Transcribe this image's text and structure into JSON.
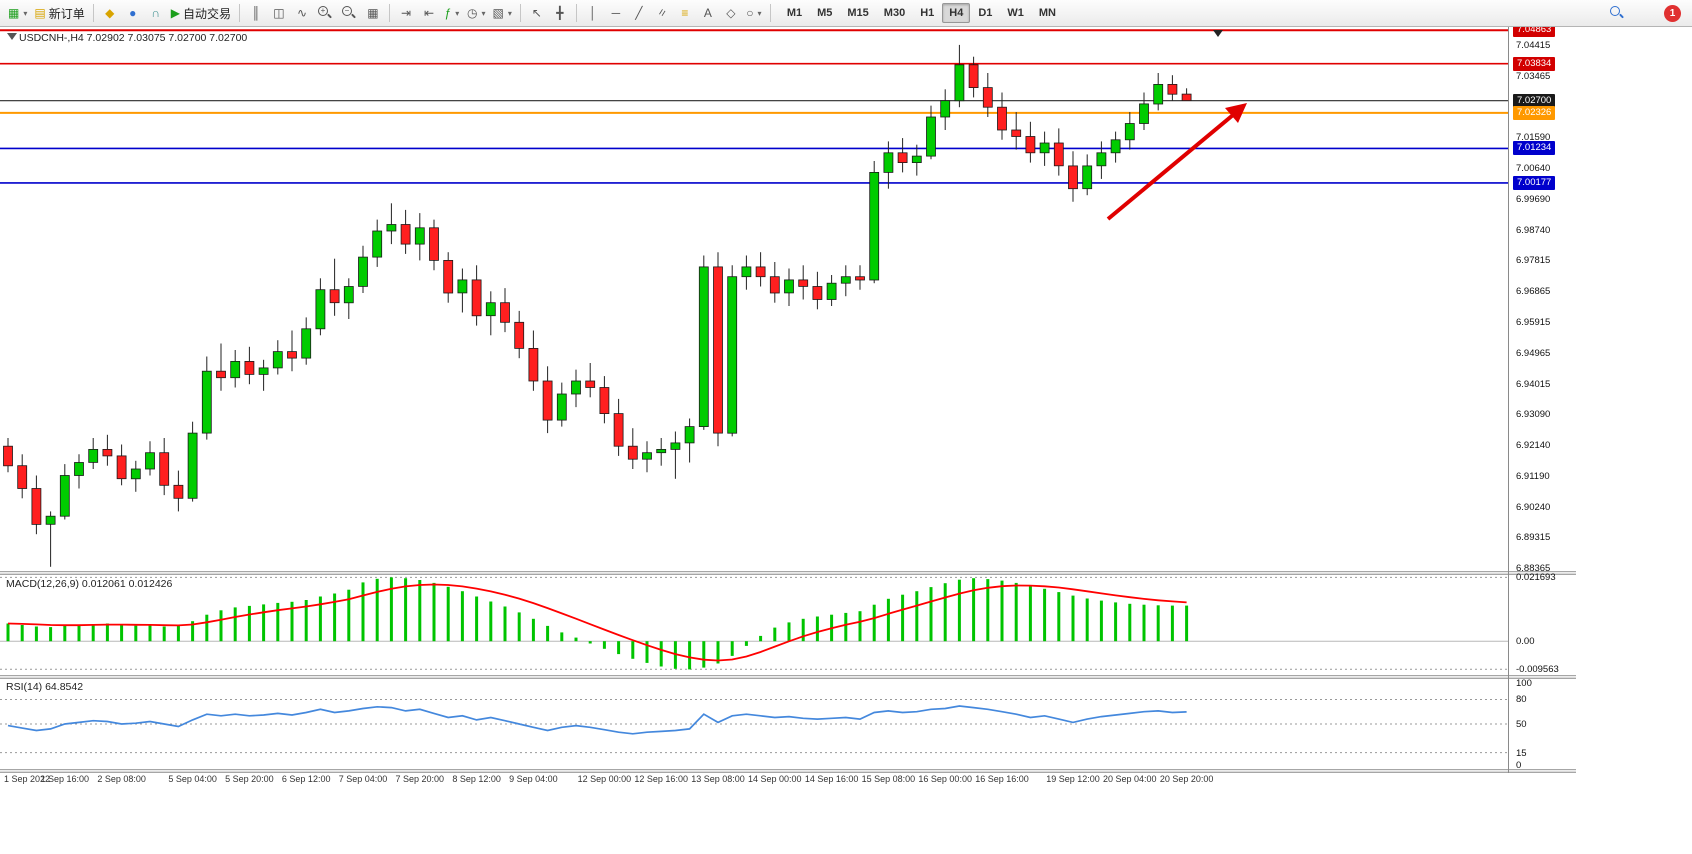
{
  "toolbar": {
    "new_order_label": "新订单",
    "auto_trading_label": "自动交易",
    "timeframes": [
      "M1",
      "M5",
      "M15",
      "M30",
      "H1",
      "H4",
      "D1",
      "W1",
      "MN"
    ],
    "active_timeframe": "H4",
    "notification_count": "1"
  },
  "icons": {
    "caret": "▾",
    "new_chart": "▦",
    "new_order": "▤",
    "coin": "◆",
    "profile": "●",
    "headset": "∩",
    "play": "▶",
    "bar_chart": "║",
    "candle_chart": "◫",
    "line_chart": "∿",
    "plus": "+",
    "minus": "−",
    "tile": "▦",
    "autoscroll": "⇥",
    "shift": "⇤",
    "indicators": "ƒ",
    "period": "◷",
    "template": "▧",
    "cursor": "↖",
    "crosshair": "╋",
    "vline": "│",
    "hline": "─",
    "tline": "╱",
    "channel": "=",
    "fibo": "≡",
    "text_tool": "A",
    "label_tool": "◇",
    "shapes": "○"
  },
  "chart": {
    "title": "USDCNH-,H4 7.02902 7.03075 7.02700 7.02700",
    "symbol": "USDCNH-",
    "period": "H4",
    "ohlc": {
      "open": "7.02902",
      "high": "7.03075",
      "low": "7.02700",
      "close": "7.02700"
    },
    "hlines": [
      {
        "price": 7.04863,
        "color": "#e00000",
        "width": 2
      },
      {
        "price": 7.03834,
        "color": "#e00000",
        "width": 1.6
      },
      {
        "price": 7.027,
        "color": "#2a2a2a",
        "width": 1.2
      },
      {
        "price": 7.02326,
        "color": "#ff9900",
        "width": 2
      },
      {
        "price": 7.01234,
        "color": "#0000cc",
        "width": 1.6
      },
      {
        "price": 7.00177,
        "color": "#0000cc",
        "width": 1.6
      }
    ],
    "price_axis_tags": [
      {
        "label": "7.04863",
        "price": 7.04863,
        "color": "#d20000"
      },
      {
        "label": "7.03834",
        "price": 7.03834,
        "color": "#d20000"
      },
      {
        "label": "7.02700",
        "price": 7.027,
        "color": "#1a1a1a"
      },
      {
        "label": "7.02326",
        "price": 7.02326,
        "color": "#ff9900"
      },
      {
        "label": "7.01234",
        "price": 7.01234,
        "color": "#0000cc"
      },
      {
        "label": "7.00177",
        "price": 7.00177,
        "color": "#0000cc"
      }
    ],
    "price_axis_plain": [
      {
        "label": "7.04415",
        "price": 7.04415
      },
      {
        "label": "7.03465",
        "price": 7.03465
      },
      {
        "label": "7.01590",
        "price": 7.0159
      },
      {
        "label": "7.00640",
        "price": 7.0064
      },
      {
        "label": "6.99690",
        "price": 6.9969
      },
      {
        "label": "6.98740",
        "price": 6.9874
      },
      {
        "label": "6.97815",
        "price": 6.97815
      },
      {
        "label": "6.96865",
        "price": 6.96865
      },
      {
        "label": "6.95915",
        "price": 6.95915
      },
      {
        "label": "6.94965",
        "price": 6.94965
      },
      {
        "label": "6.94015",
        "price": 6.94015
      },
      {
        "label": "6.93090",
        "price": 6.9309
      },
      {
        "label": "6.92140",
        "price": 6.9214
      },
      {
        "label": "6.91190",
        "price": 6.9119
      },
      {
        "label": "6.90240",
        "price": 6.9024
      },
      {
        "label": "6.89315",
        "price": 6.89315
      },
      {
        "label": "6.88365",
        "price": 6.88365
      }
    ],
    "x_labels": [
      {
        "label": "1 Sep 2022",
        "candle": 0
      },
      {
        "label": "1 Sep 16:00",
        "candle": 4
      },
      {
        "label": "2 Sep 08:00",
        "candle": 8
      },
      {
        "label": "5 Sep 04:00",
        "candle": 13
      },
      {
        "label": "5 Sep 20:00",
        "candle": 17
      },
      {
        "label": "6 Sep 12:00",
        "candle": 21
      },
      {
        "label": "7 Sep 04:00",
        "candle": 25
      },
      {
        "label": "7 Sep 20:00",
        "candle": 29
      },
      {
        "label": "8 Sep 12:00",
        "candle": 33
      },
      {
        "label": "9 Sep 04:00",
        "candle": 37
      },
      {
        "label": "12 Sep 00:00",
        "candle": 42
      },
      {
        "label": "12 Sep 16:00",
        "candle": 46
      },
      {
        "label": "13 Sep 08:00",
        "candle": 50
      },
      {
        "label": "14 Sep 00:00",
        "candle": 54
      },
      {
        "label": "14 Sep 16:00",
        "candle": 58
      },
      {
        "label": "15 Sep 08:00",
        "candle": 62
      },
      {
        "label": "16 Sep 00:00",
        "candle": 66
      },
      {
        "label": "16 Sep 16:00",
        "candle": 70
      },
      {
        "label": "19 Sep 12:00",
        "candle": 75
      },
      {
        "label": "20 Sep 04:00",
        "candle": 79
      },
      {
        "label": "20 Sep 20:00",
        "candle": 83
      }
    ]
  },
  "macd_panel": {
    "label": "MACD(12,26,9) 0.012061 0.012426",
    "axis": [
      {
        "label": "0.021693",
        "value": 0.021693
      },
      {
        "label": "0.00",
        "value": 0
      },
      {
        "label": "-0.009563",
        "value": -0.009563
      }
    ]
  },
  "rsi_panel": {
    "label": "RSI(14) 64.8542",
    "axis": [
      {
        "label": "100",
        "value": 100
      },
      {
        "label": "80",
        "value": 80
      },
      {
        "label": "50",
        "value": 50
      },
      {
        "label": "15",
        "value": 15
      },
      {
        "label": "0",
        "value": 0
      }
    ],
    "levels": [
      80,
      50,
      15
    ]
  },
  "chart_data": {
    "type": "candlestick",
    "symbol": "USDCNH-",
    "timeframe": "H4",
    "price_range": [
      7.0496,
      6.8827
    ],
    "macd_range": [
      0.0225,
      -0.0115
    ],
    "rsi_range": [
      105,
      -5
    ],
    "candles": [
      [
        6.921,
        6.9235,
        6.913,
        6.915
      ],
      [
        6.915,
        6.9185,
        6.905,
        6.908
      ],
      [
        6.908,
        6.912,
        6.894,
        6.897
      ],
      [
        6.897,
        6.901,
        6.884,
        6.8995
      ],
      [
        6.8995,
        6.9155,
        6.8985,
        6.912
      ],
      [
        6.912,
        6.9185,
        6.908,
        6.916
      ],
      [
        6.916,
        6.9235,
        6.914,
        6.92
      ],
      [
        6.92,
        6.9245,
        6.915,
        6.918
      ],
      [
        6.918,
        6.9215,
        6.909,
        6.911
      ],
      [
        6.911,
        6.9165,
        6.907,
        6.914
      ],
      [
        6.914,
        6.9225,
        6.912,
        6.919
      ],
      [
        6.919,
        6.9235,
        6.906,
        6.909
      ],
      [
        6.909,
        6.9135,
        6.901,
        6.905
      ],
      [
        6.905,
        6.9285,
        6.904,
        6.925
      ],
      [
        6.925,
        6.9485,
        6.923,
        6.944
      ],
      [
        6.944,
        6.9525,
        6.938,
        6.942
      ],
      [
        6.942,
        6.9505,
        6.939,
        6.947
      ],
      [
        6.947,
        6.9515,
        6.94,
        6.943
      ],
      [
        6.943,
        6.9475,
        6.938,
        6.945
      ],
      [
        6.945,
        6.9535,
        6.943,
        6.95
      ],
      [
        6.95,
        6.9565,
        6.944,
        6.948
      ],
      [
        6.948,
        6.9605,
        6.946,
        6.957
      ],
      [
        6.957,
        6.9725,
        6.955,
        6.969
      ],
      [
        6.969,
        6.9785,
        6.961,
        6.965
      ],
      [
        6.965,
        6.9725,
        6.96,
        6.97
      ],
      [
        6.97,
        6.9825,
        6.968,
        6.979
      ],
      [
        6.979,
        6.9905,
        6.976,
        6.987
      ],
      [
        6.987,
        6.9955,
        6.983,
        6.989
      ],
      [
        6.989,
        6.9935,
        6.98,
        6.983
      ],
      [
        6.983,
        6.9925,
        6.978,
        6.988
      ],
      [
        6.988,
        6.9905,
        6.975,
        6.978
      ],
      [
        6.978,
        6.9805,
        6.965,
        6.968
      ],
      [
        6.968,
        6.9755,
        6.962,
        6.972
      ],
      [
        6.972,
        6.9765,
        6.958,
        6.961
      ],
      [
        6.961,
        6.9685,
        6.955,
        6.965
      ],
      [
        6.965,
        6.9695,
        6.956,
        6.959
      ],
      [
        6.959,
        6.9625,
        6.948,
        6.951
      ],
      [
        6.951,
        6.9565,
        6.938,
        6.941
      ],
      [
        6.941,
        6.9455,
        6.925,
        6.929
      ],
      [
        6.929,
        6.9405,
        6.927,
        6.937
      ],
      [
        6.937,
        6.9445,
        6.933,
        6.941
      ],
      [
        6.941,
        6.9465,
        6.936,
        6.939
      ],
      [
        6.939,
        6.9425,
        6.928,
        6.931
      ],
      [
        6.931,
        6.9355,
        6.918,
        6.921
      ],
      [
        6.921,
        6.9265,
        6.914,
        6.917
      ],
      [
        6.917,
        6.9225,
        6.913,
        6.919
      ],
      [
        6.919,
        6.9235,
        6.915,
        6.92
      ],
      [
        6.92,
        6.9255,
        6.911,
        6.922
      ],
      [
        6.922,
        6.9295,
        6.916,
        6.927
      ],
      [
        6.927,
        6.9795,
        6.926,
        6.976
      ],
      [
        6.976,
        6.9805,
        6.921,
        6.925
      ],
      [
        6.925,
        6.9765,
        6.924,
        6.973
      ],
      [
        6.973,
        6.9795,
        6.969,
        6.976
      ],
      [
        6.976,
        6.9805,
        6.97,
        6.973
      ],
      [
        6.973,
        6.9775,
        6.965,
        6.968
      ],
      [
        6.968,
        6.9755,
        6.964,
        6.972
      ],
      [
        6.972,
        6.9765,
        6.966,
        6.97
      ],
      [
        6.97,
        6.9745,
        6.963,
        6.966
      ],
      [
        6.966,
        6.9735,
        6.964,
        6.971
      ],
      [
        6.971,
        6.9765,
        6.967,
        6.973
      ],
      [
        6.973,
        6.9765,
        6.969,
        6.972
      ],
      [
        6.972,
        7.0085,
        6.971,
        7.005
      ],
      [
        7.005,
        7.0145,
        7.0,
        7.011
      ],
      [
        7.011,
        7.0155,
        7.005,
        7.008
      ],
      [
        7.008,
        7.0135,
        7.004,
        7.01
      ],
      [
        7.01,
        7.0255,
        7.009,
        7.022
      ],
      [
        7.022,
        7.0305,
        7.018,
        7.027
      ],
      [
        7.027,
        7.0441,
        7.025,
        7.038
      ],
      [
        7.038,
        7.0405,
        7.028,
        7.031
      ],
      [
        7.031,
        7.0355,
        7.022,
        7.025
      ],
      [
        7.025,
        7.0295,
        7.015,
        7.018
      ],
      [
        7.018,
        7.0235,
        7.012,
        7.016
      ],
      [
        7.016,
        7.0205,
        7.008,
        7.011
      ],
      [
        7.011,
        7.0175,
        7.007,
        7.014
      ],
      [
        7.014,
        7.0185,
        7.004,
        7.007
      ],
      [
        7.007,
        7.0115,
        6.996,
        7.0
      ],
      [
        7.0,
        7.0105,
        6.998,
        7.007
      ],
      [
        7.007,
        7.0145,
        7.003,
        7.011
      ],
      [
        7.011,
        7.0175,
        7.008,
        7.015
      ],
      [
        7.015,
        7.0235,
        7.012,
        7.02
      ],
      [
        7.02,
        7.0295,
        7.018,
        7.026
      ],
      [
        7.026,
        7.0355,
        7.024,
        7.032
      ],
      [
        7.032,
        7.0348,
        7.027,
        7.029
      ],
      [
        7.029,
        7.0308,
        7.027,
        7.027
      ]
    ],
    "macd_hist": [
      0.006,
      0.0055,
      0.005,
      0.0048,
      0.0052,
      0.0055,
      0.0058,
      0.006,
      0.0056,
      0.0053,
      0.0055,
      0.005,
      0.0052,
      0.0068,
      0.009,
      0.0105,
      0.0115,
      0.012,
      0.0125,
      0.013,
      0.0134,
      0.014,
      0.0152,
      0.0162,
      0.0175,
      0.02,
      0.0212,
      0.0217,
      0.0214,
      0.0208,
      0.0198,
      0.0185,
      0.017,
      0.0152,
      0.0135,
      0.0118,
      0.0098,
      0.0076,
      0.0052,
      0.003,
      0.0012,
      -0.0008,
      -0.0026,
      -0.0044,
      -0.006,
      -0.0074,
      -0.0086,
      -0.0094,
      -0.0096,
      -0.009,
      -0.0076,
      -0.005,
      -0.0016,
      0.0018,
      0.0046,
      0.0064,
      0.0076,
      0.0084,
      0.009,
      0.0096,
      0.0102,
      0.0124,
      0.0144,
      0.0158,
      0.017,
      0.0184,
      0.0197,
      0.0209,
      0.0214,
      0.0211,
      0.0206,
      0.0198,
      0.0188,
      0.0178,
      0.0167,
      0.0155,
      0.0145,
      0.0138,
      0.0132,
      0.0127,
      0.0124,
      0.0122,
      0.0121,
      0.0121
    ],
    "rsi": [
      48,
      45,
      42,
      44,
      50,
      52,
      54,
      53,
      50,
      51,
      53,
      50,
      47,
      55,
      62,
      60,
      62,
      60,
      61,
      63,
      61,
      64,
      68,
      64,
      66,
      69,
      71,
      70,
      66,
      68,
      63,
      58,
      60,
      55,
      58,
      54,
      50,
      46,
      42,
      46,
      48,
      46,
      43,
      40,
      38,
      40,
      41,
      42,
      44,
      62,
      52,
      60,
      62,
      60,
      58,
      59,
      57,
      56,
      57,
      58,
      56,
      64,
      66,
      64,
      65,
      68,
      69,
      72,
      70,
      68,
      65,
      62,
      58,
      60,
      56,
      52,
      56,
      59,
      61,
      63,
      65,
      66,
      64,
      64.85
    ],
    "annotations": [
      {
        "type": "arrow",
        "color": "#e00000",
        "direction": "up-right"
      }
    ]
  }
}
